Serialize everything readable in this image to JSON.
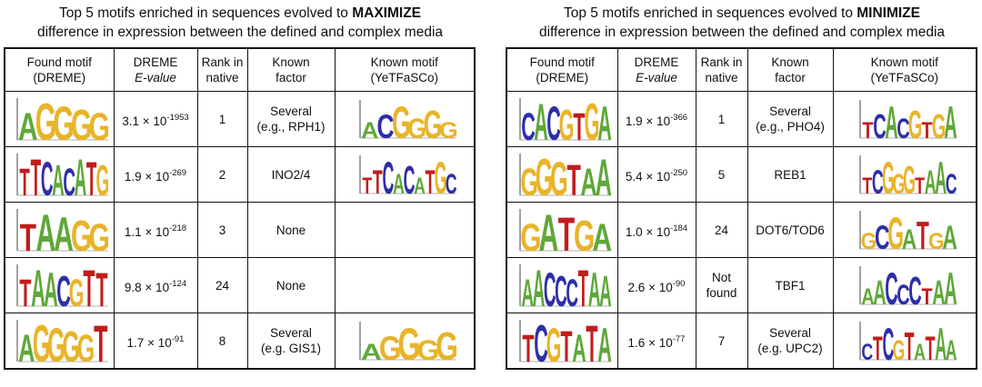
{
  "panels": [
    {
      "title_prefix": "Top 5 motifs enriched in sequences evolved to ",
      "title_bold": "MAXIMIZE",
      "title_line2": "difference in expression between the defined and complex media",
      "headers": {
        "found_1": "Found motif",
        "found_2": "(DREME)",
        "eval_1": "DREME",
        "eval_2": "E-value",
        "rank_1": "Rank in",
        "rank_2": "native",
        "factor_1": "Known",
        "factor_2": "factor",
        "known_1": "Known motif",
        "known_2": "(YeTFaSCo)"
      },
      "rows": [
        {
          "motif": "AGGGG",
          "eval_base": "3.1 × 10",
          "eval_exp": "-1953",
          "rank_1": "1",
          "rank_2": "",
          "factor_1": "Several",
          "factor_2": "(e.g., RPH1)",
          "known_logo": "ACGGGG"
        },
        {
          "motif": "TTCACATG",
          "eval_base": "1.9 × 10",
          "eval_exp": "-269",
          "rank_1": "2",
          "rank_2": "",
          "factor_1": "INO2/4",
          "factor_2": "",
          "known_logo": "TTCACATGC"
        },
        {
          "motif": "TAAGG",
          "eval_base": "1.1 × 10",
          "eval_exp": "-218",
          "rank_1": "3",
          "rank_2": "",
          "factor_1": "None",
          "factor_2": "",
          "known_logo": ""
        },
        {
          "motif": "TAACGTT",
          "eval_base": "9.8 × 10",
          "eval_exp": "-124",
          "rank_1": "24",
          "rank_2": "",
          "factor_1": "None",
          "factor_2": "",
          "known_logo": ""
        },
        {
          "motif": "AGGGGT",
          "eval_base": "1.7 × 10",
          "eval_exp": "-91",
          "rank_1": "8",
          "rank_2": "",
          "factor_1": "Several",
          "factor_2": "(e.g. GIS1)",
          "known_logo": "AGGGG"
        }
      ]
    },
    {
      "title_prefix": "Top 5 motifs enriched in sequences evolved to ",
      "title_bold": "MINIMIZE",
      "title_line2": "difference in expression between the defined and complex media",
      "headers": {
        "found_1": "Found motif",
        "found_2": "(DREME)",
        "eval_1": "DREME",
        "eval_2": "E-value",
        "rank_1": "Rank in",
        "rank_2": "native",
        "factor_1": "Known",
        "factor_2": "factor",
        "known_1": "Known motif",
        "known_2": "(YeTFaSCo)"
      },
      "rows": [
        {
          "motif": "CACGTGA",
          "eval_base": "1.9 × 10",
          "eval_exp": "-366",
          "rank_1": "1",
          "rank_2": "",
          "factor_1": "Several",
          "factor_2": "(e.g., PHO4)",
          "known_logo": "TCACGTGA"
        },
        {
          "motif": "GGGTAA",
          "eval_base": "5.4 × 10",
          "eval_exp": "-250",
          "rank_1": "5",
          "rank_2": "",
          "factor_1": "REB1",
          "factor_2": "",
          "known_logo": "TCGGGTAAC"
        },
        {
          "motif": "GATGA",
          "eval_base": "1.0 × 10",
          "eval_exp": "-184",
          "rank_1": "24",
          "rank_2": "",
          "factor_1": "DOT6/TOD6",
          "factor_2": "",
          "known_logo": "GCGATGA"
        },
        {
          "motif": "AACCCTAA",
          "eval_base": "2.6 × 10",
          "eval_exp": "-90",
          "rank_1": "Not",
          "rank_2": "found",
          "factor_1": "TBF1",
          "factor_2": "",
          "known_logo": "AACCCTAA"
        },
        {
          "motif": "TCGTATA",
          "eval_base": "1.6 × 10",
          "eval_exp": "-77",
          "rank_1": "7",
          "rank_2": "",
          "factor_1": "Several",
          "factor_2": "(e.g. UPC2)",
          "known_logo": "CTCGTATAA"
        }
      ]
    }
  ],
  "logo_colors": {
    "A": "#5fa83a",
    "C": "#2e2ea8",
    "G": "#e8b42a",
    "T": "#c21d1d"
  }
}
